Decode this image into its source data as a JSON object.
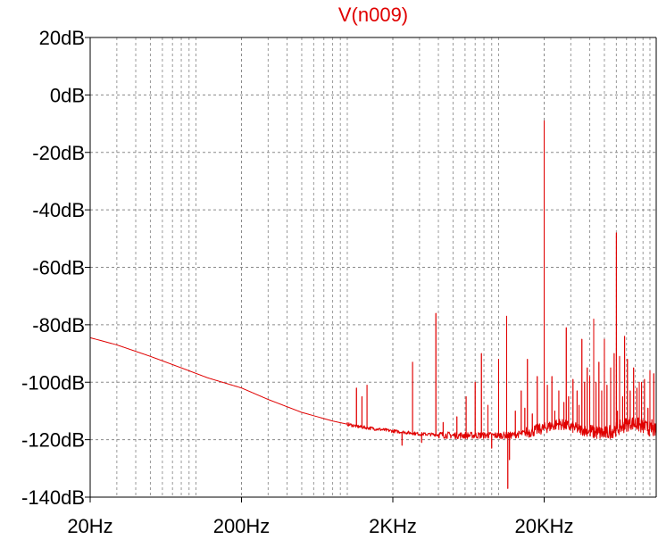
{
  "chart_data": {
    "type": "line",
    "title": "V(n009)",
    "xlabel": "",
    "ylabel": "",
    "x_scale": "log",
    "xlim": [
      20,
      110000
    ],
    "ylim": [
      -140,
      20
    ],
    "grid": true,
    "x_ticks": [
      {
        "value": 20,
        "label": "20Hz"
      },
      {
        "value": 200,
        "label": "200Hz"
      },
      {
        "value": 2000,
        "label": "2KHz"
      },
      {
        "value": 20000,
        "label": "20KHz"
      }
    ],
    "y_ticks": [
      {
        "value": 20,
        "label": "20dB"
      },
      {
        "value": 0,
        "label": "0dB"
      },
      {
        "value": -20,
        "label": "-20dB"
      },
      {
        "value": -40,
        "label": "-40dB"
      },
      {
        "value": -60,
        "label": "-60dB"
      },
      {
        "value": -80,
        "label": "-80dB"
      },
      {
        "value": -100,
        "label": "-100dB"
      },
      {
        "value": -120,
        "label": "-120dB"
      },
      {
        "value": -140,
        "label": "-140dB"
      }
    ],
    "series": [
      {
        "name": "V(n009)",
        "color": "#e00000",
        "baseline": {
          "x": [
            20,
            30,
            50,
            80,
            120,
            200,
            300,
            500,
            800,
            1200,
            2000,
            3000,
            5000,
            8000,
            12000,
            14000,
            20000,
            25000,
            35000,
            50000,
            65000,
            75000,
            90000,
            110000
          ],
          "y": [
            -84.5,
            -87,
            -91,
            -95,
            -98.5,
            -102,
            -106,
            -110.5,
            -113.5,
            -115.5,
            -117,
            -118,
            -118.5,
            -118.5,
            -118.5,
            -118,
            -116,
            -114.5,
            -116.5,
            -118,
            -115.5,
            -114,
            -115.5,
            -117
          ]
        },
        "spikes": [
          {
            "x": 1150,
            "y": -102
          },
          {
            "x": 1250,
            "y": -105
          },
          {
            "x": 1350,
            "y": -101
          },
          {
            "x": 2300,
            "y": -122
          },
          {
            "x": 2700,
            "y": -93
          },
          {
            "x": 3100,
            "y": -121
          },
          {
            "x": 3850,
            "y": -76
          },
          {
            "x": 4300,
            "y": -114
          },
          {
            "x": 5300,
            "y": -112
          },
          {
            "x": 6100,
            "y": -105
          },
          {
            "x": 7000,
            "y": -100
          },
          {
            "x": 7700,
            "y": -90
          },
          {
            "x": 8500,
            "y": -108
          },
          {
            "x": 9000,
            "y": -123
          },
          {
            "x": 10000,
            "y": -92
          },
          {
            "x": 11300,
            "y": -77
          },
          {
            "x": 11500,
            "y": -137
          },
          {
            "x": 11800,
            "y": -127
          },
          {
            "x": 12900,
            "y": -110
          },
          {
            "x": 14100,
            "y": -103
          },
          {
            "x": 14900,
            "y": -109
          },
          {
            "x": 15500,
            "y": -92
          },
          {
            "x": 16700,
            "y": -111
          },
          {
            "x": 18000,
            "y": -98
          },
          {
            "x": 20000,
            "y": -9
          },
          {
            "x": 21000,
            "y": -101
          },
          {
            "x": 22500,
            "y": -98
          },
          {
            "x": 23500,
            "y": -110
          },
          {
            "x": 25000,
            "y": -103
          },
          {
            "x": 27000,
            "y": -107
          },
          {
            "x": 28000,
            "y": -81
          },
          {
            "x": 29000,
            "y": -105
          },
          {
            "x": 31000,
            "y": -99
          },
          {
            "x": 33000,
            "y": -103
          },
          {
            "x": 34000,
            "y": -108
          },
          {
            "x": 35500,
            "y": -85
          },
          {
            "x": 37000,
            "y": -100
          },
          {
            "x": 38500,
            "y": -95
          },
          {
            "x": 40000,
            "y": -98
          },
          {
            "x": 42500,
            "y": -78
          },
          {
            "x": 44000,
            "y": -100
          },
          {
            "x": 46000,
            "y": -93
          },
          {
            "x": 48000,
            "y": -103
          },
          {
            "x": 50000,
            "y": -85
          },
          {
            "x": 52000,
            "y": -101
          },
          {
            "x": 55000,
            "y": -95
          },
          {
            "x": 58000,
            "y": -90
          },
          {
            "x": 60000,
            "y": -48
          },
          {
            "x": 61000,
            "y": -110
          },
          {
            "x": 63000,
            "y": -91
          },
          {
            "x": 66000,
            "y": -105
          },
          {
            "x": 68000,
            "y": -84
          },
          {
            "x": 71000,
            "y": -92
          },
          {
            "x": 74000,
            "y": -103
          },
          {
            "x": 78000,
            "y": -95
          },
          {
            "x": 82000,
            "y": -102
          },
          {
            "x": 85000,
            "y": -100
          },
          {
            "x": 88000,
            "y": -100
          },
          {
            "x": 92000,
            "y": -99
          },
          {
            "x": 97000,
            "y": -109
          },
          {
            "x": 100000,
            "y": -96
          },
          {
            "x": 103000,
            "y": -113
          },
          {
            "x": 106000,
            "y": -97
          }
        ]
      }
    ]
  }
}
